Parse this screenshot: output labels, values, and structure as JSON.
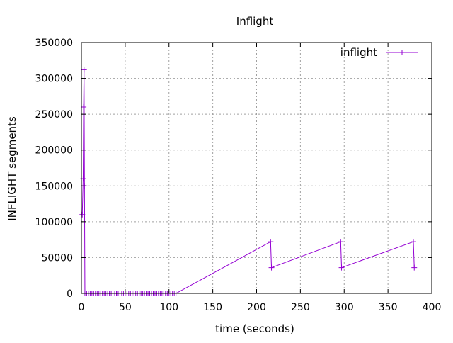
{
  "chart_data": {
    "type": "line",
    "title": "Inflight",
    "xlabel": "time (seconds)",
    "ylabel": "INFLIGHT segments",
    "xlim": [
      0,
      400
    ],
    "ylim": [
      0,
      350000
    ],
    "x_ticks": [
      0,
      50,
      100,
      150,
      200,
      250,
      300,
      350,
      400
    ],
    "y_ticks": [
      0,
      50000,
      100000,
      150000,
      200000,
      250000,
      300000,
      350000
    ],
    "grid": true,
    "legend_position": "top-right",
    "series": [
      {
        "name": "inflight",
        "color": "#9400d3",
        "marker": "plus",
        "x": [
          1,
          2,
          2.5,
          3,
          3.5,
          4,
          6,
          8,
          10,
          12,
          14,
          16,
          18,
          20,
          22,
          24,
          26,
          28,
          30,
          32,
          34,
          36,
          38,
          40,
          42,
          44,
          46,
          48,
          50,
          52,
          54,
          56,
          58,
          60,
          62,
          64,
          66,
          68,
          70,
          72,
          74,
          76,
          78,
          80,
          82,
          84,
          86,
          88,
          90,
          92,
          94,
          96,
          98,
          100,
          102,
          104,
          106,
          108,
          216,
          217,
          296,
          297,
          379,
          380
        ],
        "y": [
          110000,
          160000,
          260000,
          312000,
          150000,
          0,
          0,
          0,
          0,
          0,
          0,
          0,
          0,
          0,
          0,
          0,
          0,
          0,
          0,
          0,
          0,
          0,
          0,
          0,
          0,
          0,
          0,
          0,
          0,
          0,
          0,
          0,
          0,
          0,
          0,
          0,
          0,
          0,
          0,
          0,
          0,
          0,
          0,
          0,
          0,
          0,
          0,
          0,
          0,
          0,
          0,
          0,
          0,
          0,
          0,
          0,
          0,
          0,
          72000,
          36000,
          72000,
          36000,
          72000,
          36000
        ]
      }
    ]
  }
}
